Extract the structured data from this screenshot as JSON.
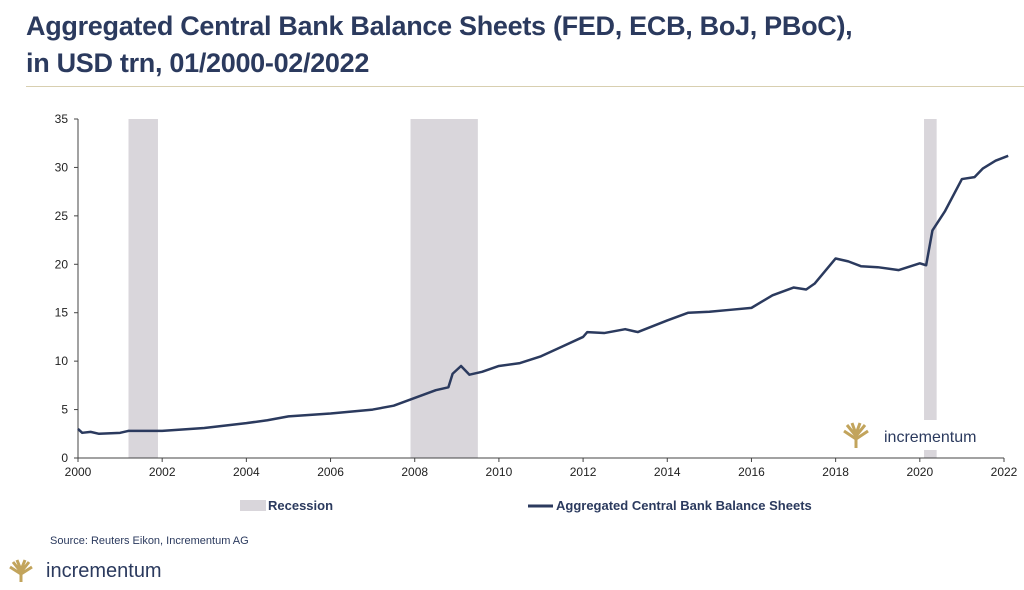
{
  "chart_data": {
    "type": "line",
    "title": "Aggregated Central Bank Balance Sheets (FED, ECB, BoJ, PBoC),",
    "subtitle": "in USD trn, 01/2000-02/2022",
    "xlabel": "",
    "ylabel": "",
    "xlim": [
      2000,
      2022
    ],
    "ylim": [
      0,
      35
    ],
    "x_ticks": [
      "2000",
      "2002",
      "2004",
      "2006",
      "2008",
      "2010",
      "2012",
      "2014",
      "2016",
      "2018",
      "2020",
      "2022"
    ],
    "y_ticks": [
      "0",
      "5",
      "10",
      "15",
      "20",
      "25",
      "30",
      "35"
    ],
    "recessions": [
      [
        2001.2,
        2001.9
      ],
      [
        2007.9,
        2009.5
      ],
      [
        2020.1,
        2020.4
      ]
    ],
    "series": [
      {
        "name": "Aggregated Central Bank Balance Sheets",
        "color": "#2b3a5e",
        "x": [
          2000,
          2000.1,
          2000.3,
          2000.5,
          2001,
          2001.2,
          2002,
          2003,
          2004,
          2004.5,
          2005,
          2006,
          2007,
          2007.5,
          2008,
          2008.5,
          2008.8,
          2008.9,
          2009.1,
          2009.3,
          2009.6,
          2010,
          2010.5,
          2011,
          2011.5,
          2012,
          2012.1,
          2012.5,
          2013,
          2013.3,
          2014,
          2014.5,
          2015,
          2015.5,
          2016,
          2016.5,
          2017,
          2017.3,
          2017.5,
          2018,
          2018.3,
          2018.6,
          2019,
          2019.5,
          2020,
          2020.15,
          2020.3,
          2020.6,
          2021,
          2021.3,
          2021.5,
          2021.8,
          2022.1
        ],
        "y": [
          3.0,
          2.6,
          2.7,
          2.5,
          2.6,
          2.8,
          2.8,
          3.1,
          3.6,
          3.9,
          4.3,
          4.6,
          5.0,
          5.4,
          6.2,
          7.0,
          7.3,
          8.7,
          9.5,
          8.6,
          8.9,
          9.5,
          9.8,
          10.5,
          11.5,
          12.5,
          13.0,
          12.9,
          13.3,
          13.0,
          14.2,
          15.0,
          15.1,
          15.3,
          15.5,
          16.8,
          17.6,
          17.4,
          18.0,
          20.6,
          20.3,
          19.8,
          19.7,
          19.4,
          20.1,
          19.9,
          23.5,
          25.5,
          28.8,
          29.0,
          29.9,
          30.7,
          31.2
        ]
      }
    ],
    "legend": {
      "recession_label": "Recession",
      "series_label": "Aggregated Central Bank Balance Sheets",
      "placement": "bottom"
    }
  },
  "source": "Source: Reuters Eikon, Incrementum AG",
  "brand": "incrementum"
}
